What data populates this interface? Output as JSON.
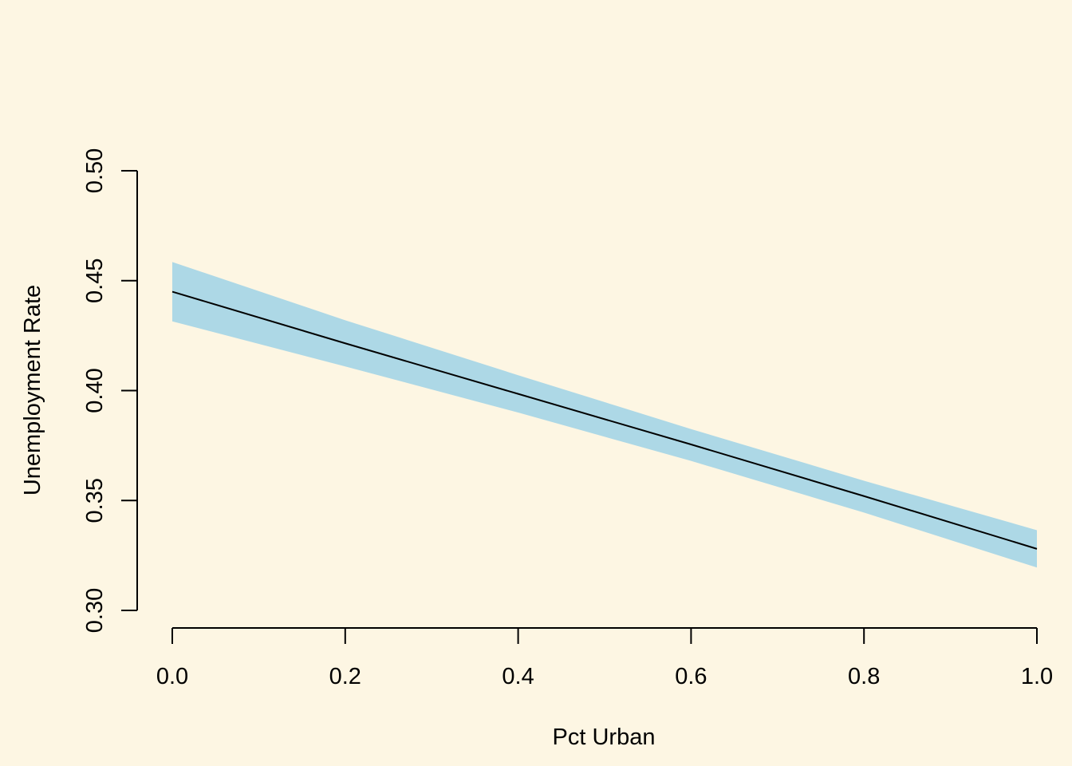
{
  "colors": {
    "background": "#fdf6e3",
    "band": "#add8e6",
    "line": "#000000",
    "axis": "#000000"
  },
  "chart_data": {
    "type": "line",
    "title": "",
    "xlabel": "Pct Urban",
    "ylabel": "Unemployment Rate",
    "xlim": [
      0.0,
      1.0
    ],
    "ylim": [
      0.3,
      0.5
    ],
    "xticks": [
      "0.0",
      "0.2",
      "0.4",
      "0.6",
      "0.8",
      "1.0"
    ],
    "yticks": [
      "0.30",
      "0.35",
      "0.40",
      "0.45",
      "0.50"
    ],
    "grid": false,
    "legend": "none",
    "series": [
      {
        "x": [
          0.0,
          0.2,
          0.4,
          0.6,
          0.8,
          1.0
        ],
        "y": [
          0.445,
          0.4215,
          0.3985,
          0.3755,
          0.352,
          0.328
        ],
        "lower": [
          0.4315,
          0.411,
          0.39,
          0.368,
          0.3445,
          0.3195
        ],
        "upper": [
          0.4585,
          0.432,
          0.407,
          0.3825,
          0.359,
          0.3365
        ]
      }
    ]
  }
}
